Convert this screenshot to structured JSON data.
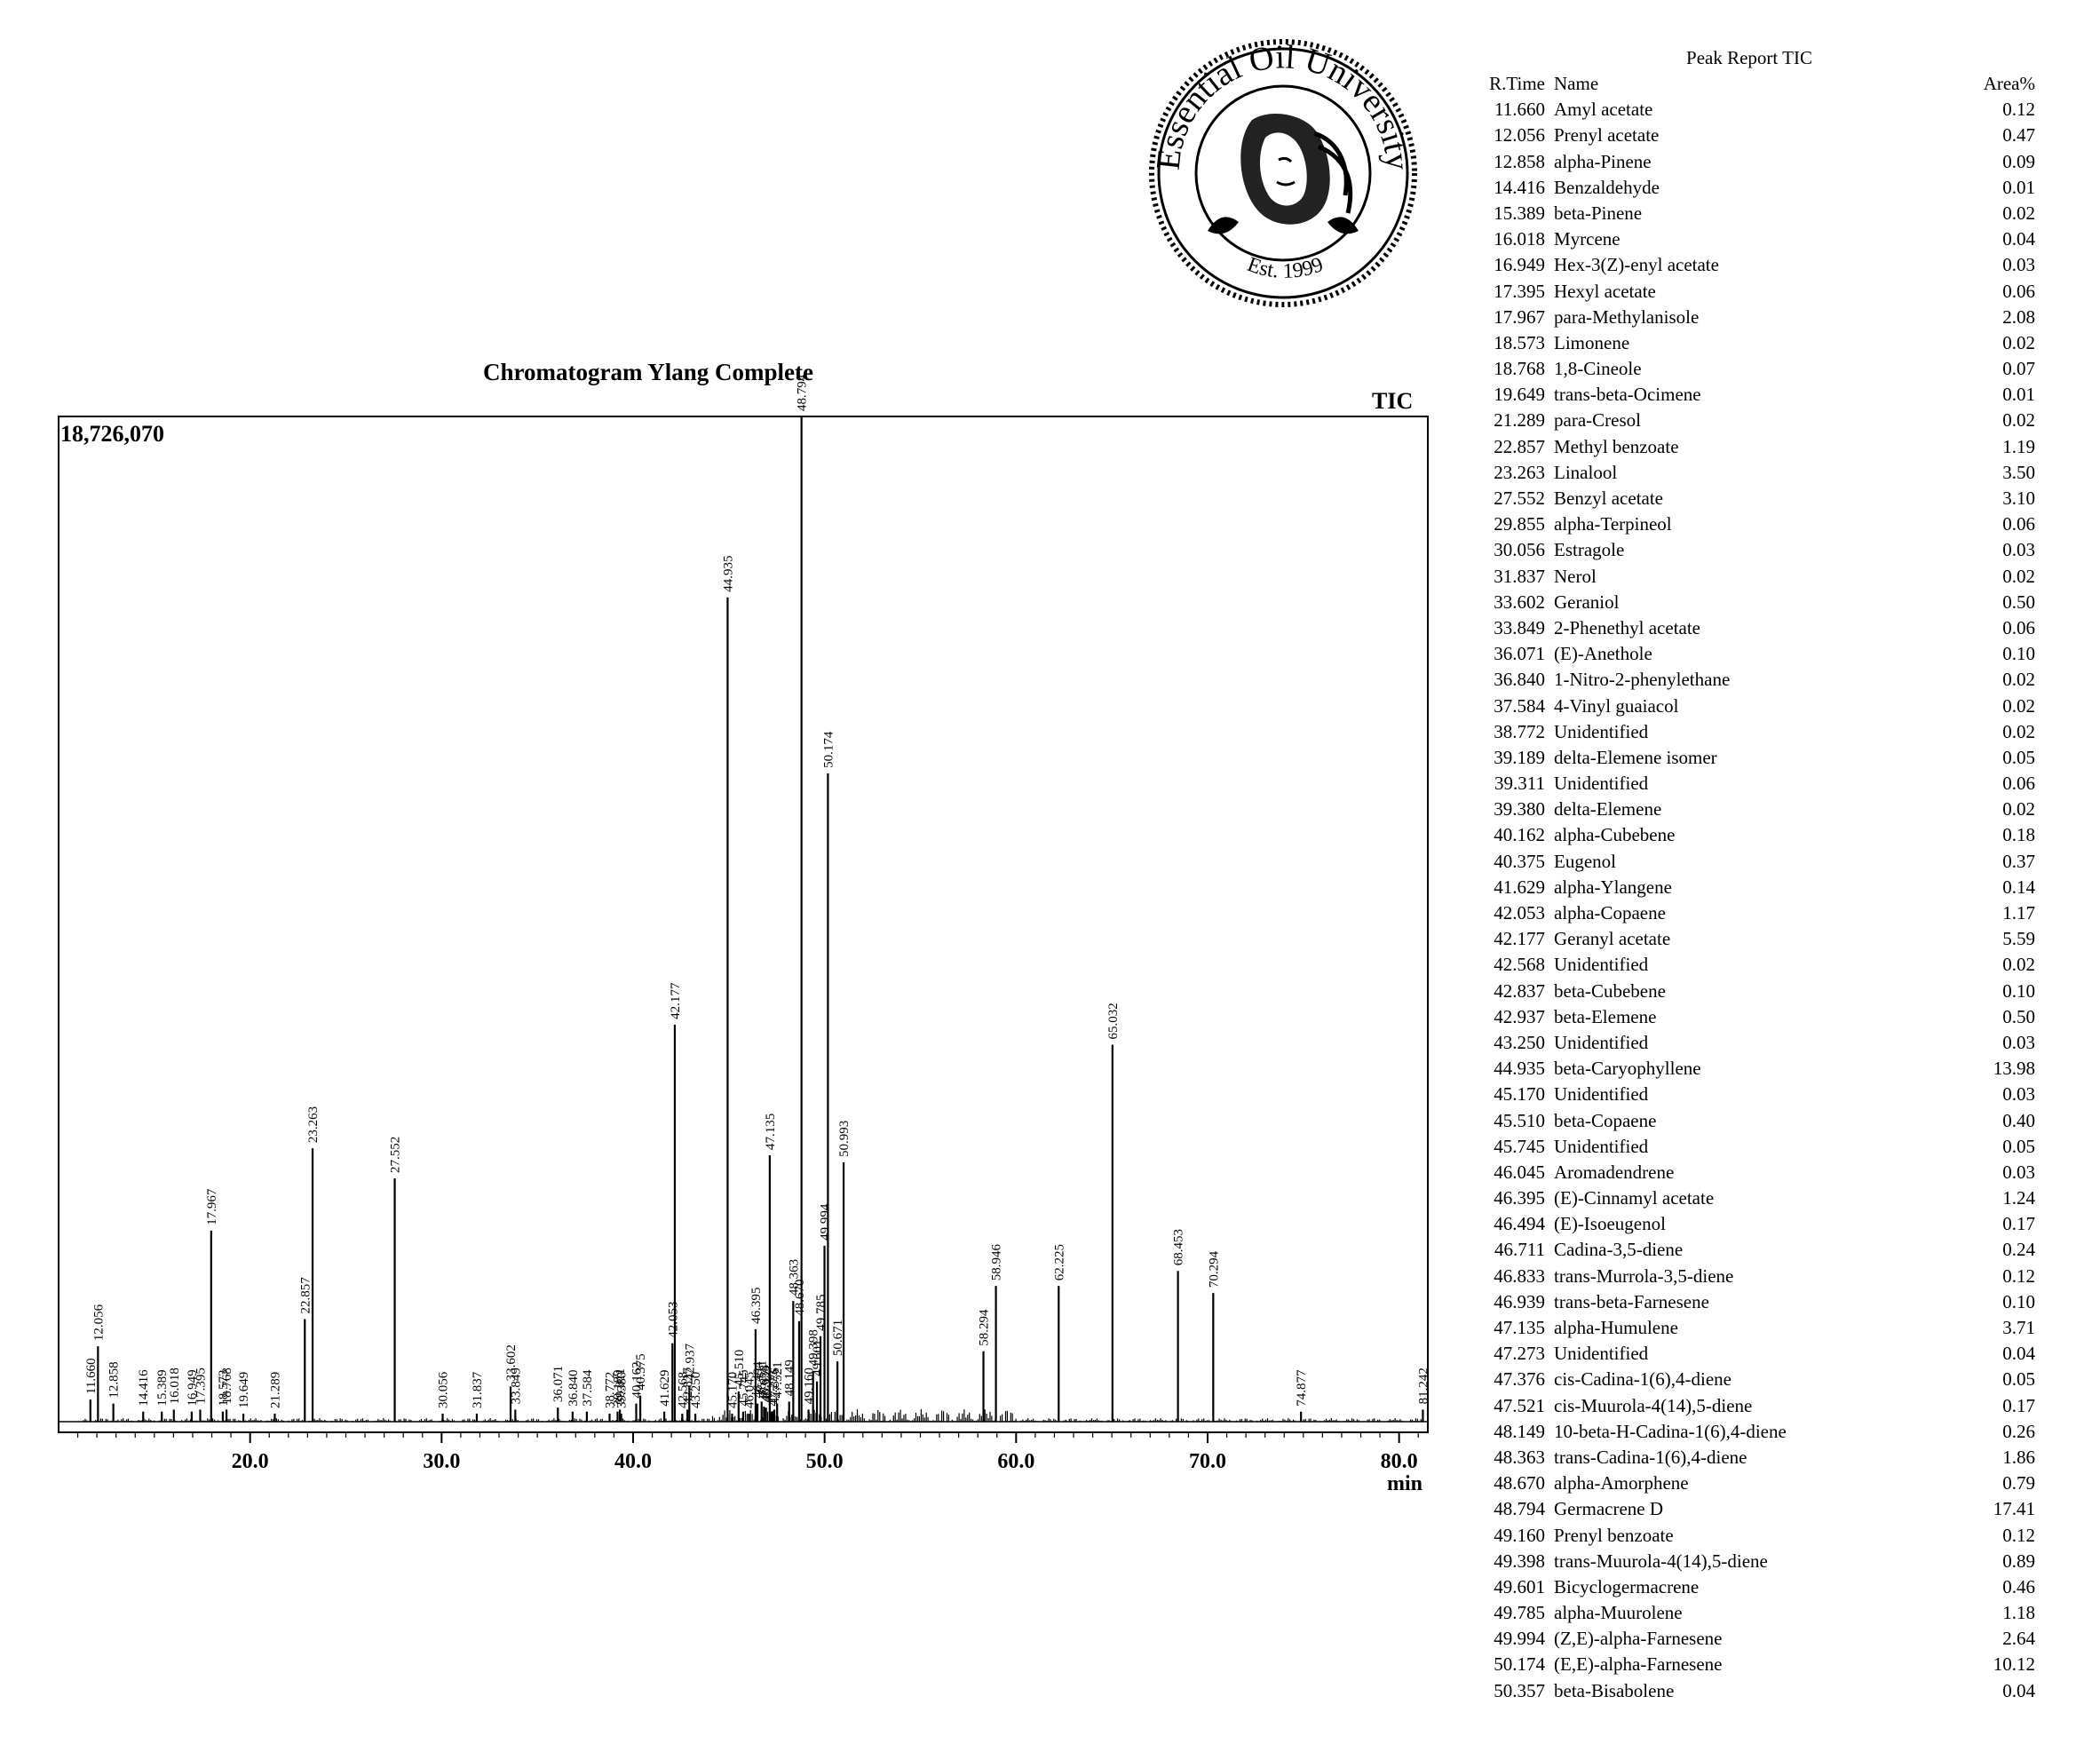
{
  "logo": {
    "text": "Essential Oil University",
    "est": "Est. 1999"
  },
  "chart_data": {
    "type": "line",
    "title": "Chromatogram Ylang Complete",
    "signal_label": "TIC",
    "max_intensity_label": "18,726,070",
    "xlabel": "min",
    "xlim": [
      10.0,
      81.5
    ],
    "ylim": [
      0,
      18726070
    ],
    "x_ticks": [
      "20.0",
      "30.0",
      "40.0",
      "50.0",
      "60.0",
      "70.0",
      "80.0"
    ],
    "peaks": [
      {
        "rt": "11.660",
        "h": 0.022
      },
      {
        "rt": "12.056",
        "h": 0.075
      },
      {
        "rt": "12.858",
        "h": 0.018
      },
      {
        "rt": "14.416",
        "h": 0.01
      },
      {
        "rt": "15.389",
        "h": 0.01
      },
      {
        "rt": "16.018",
        "h": 0.012
      },
      {
        "rt": "16.949",
        "h": 0.01
      },
      {
        "rt": "17.395",
        "h": 0.012
      },
      {
        "rt": "17.967",
        "h": 0.19
      },
      {
        "rt": "18.573",
        "h": 0.01
      },
      {
        "rt": "18.768",
        "h": 0.012
      },
      {
        "rt": "19.649",
        "h": 0.008
      },
      {
        "rt": "21.289",
        "h": 0.008
      },
      {
        "rt": "22.857",
        "h": 0.102
      },
      {
        "rt": "23.263",
        "h": 0.272
      },
      {
        "rt": "27.552",
        "h": 0.242
      },
      {
        "rt": "30.056",
        "h": 0.008
      },
      {
        "rt": "31.837",
        "h": 0.008
      },
      {
        "rt": "33.602",
        "h": 0.035
      },
      {
        "rt": "33.849",
        "h": 0.012
      },
      {
        "rt": "36.071",
        "h": 0.014
      },
      {
        "rt": "36.840",
        "h": 0.01
      },
      {
        "rt": "37.584",
        "h": 0.01
      },
      {
        "rt": "38.772",
        "h": 0.008
      },
      {
        "rt": "39.189",
        "h": 0.01
      },
      {
        "rt": "39.311",
        "h": 0.012
      },
      {
        "rt": "39.380",
        "h": 0.008
      },
      {
        "rt": "40.162",
        "h": 0.018
      },
      {
        "rt": "40.375",
        "h": 0.026
      },
      {
        "rt": "41.629",
        "h": 0.01
      },
      {
        "rt": "42.053",
        "h": 0.078
      },
      {
        "rt": "42.177",
        "h": 0.395
      },
      {
        "rt": "42.568",
        "h": 0.008
      },
      {
        "rt": "42.837",
        "h": 0.012
      },
      {
        "rt": "42.937",
        "h": 0.036
      },
      {
        "rt": "43.250",
        "h": 0.008
      },
      {
        "rt": "44.935",
        "h": 0.82
      },
      {
        "rt": "45.170",
        "h": 0.008
      },
      {
        "rt": "45.510",
        "h": 0.03
      },
      {
        "rt": "45.745",
        "h": 0.01
      },
      {
        "rt": "46.045",
        "h": 0.008
      },
      {
        "rt": "46.395",
        "h": 0.092
      },
      {
        "rt": "46.494",
        "h": 0.018
      },
      {
        "rt": "46.711",
        "h": 0.02
      },
      {
        "rt": "46.833",
        "h": 0.015
      },
      {
        "rt": "46.939",
        "h": 0.014
      },
      {
        "rt": "47.135",
        "h": 0.265
      },
      {
        "rt": "47.273",
        "h": 0.01
      },
      {
        "rt": "47.376",
        "h": 0.012
      },
      {
        "rt": "47.521",
        "h": 0.018
      },
      {
        "rt": "48.149",
        "h": 0.02
      },
      {
        "rt": "48.363",
        "h": 0.12
      },
      {
        "rt": "48.670",
        "h": 0.1
      },
      {
        "rt": "48.794",
        "h": 1.0
      },
      {
        "rt": "49.160",
        "h": 0.012
      },
      {
        "rt": "49.398",
        "h": 0.05
      },
      {
        "rt": "49.601",
        "h": 0.04
      },
      {
        "rt": "49.785",
        "h": 0.085
      },
      {
        "rt": "49.994",
        "h": 0.175
      },
      {
        "rt": "50.174",
        "h": 0.645
      },
      {
        "rt": "50.671",
        "h": 0.06
      },
      {
        "rt": "50.993",
        "h": 0.258
      },
      {
        "rt": "58.294",
        "h": 0.07
      },
      {
        "rt": "58.946",
        "h": 0.135
      },
      {
        "rt": "62.225",
        "h": 0.135
      },
      {
        "rt": "65.032",
        "h": 0.375
      },
      {
        "rt": "68.453",
        "h": 0.15
      },
      {
        "rt": "70.294",
        "h": 0.128
      },
      {
        "rt": "74.877",
        "h": 0.01
      },
      {
        "rt": "81.242",
        "h": 0.012
      }
    ]
  },
  "peak_report": {
    "title": "Peak Report TIC",
    "headers": {
      "rt": "R.Time",
      "name": "Name",
      "area": "Area%"
    },
    "rows": [
      [
        "11.660",
        "Amyl acetate",
        "0.12"
      ],
      [
        "12.056",
        "Prenyl acetate",
        "0.47"
      ],
      [
        "12.858",
        "alpha-Pinene",
        "0.09"
      ],
      [
        "14.416",
        "Benzaldehyde",
        "0.01"
      ],
      [
        "15.389",
        "beta-Pinene",
        "0.02"
      ],
      [
        "16.018",
        "Myrcene",
        "0.04"
      ],
      [
        "16.949",
        "Hex-3(Z)-enyl acetate",
        "0.03"
      ],
      [
        "17.395",
        "Hexyl acetate",
        "0.06"
      ],
      [
        "17.967",
        "para-Methylanisole",
        "2.08"
      ],
      [
        "18.573",
        "Limonene",
        "0.02"
      ],
      [
        "18.768",
        "1,8-Cineole",
        "0.07"
      ],
      [
        "19.649",
        "trans-beta-Ocimene",
        "0.01"
      ],
      [
        "21.289",
        "para-Cresol",
        "0.02"
      ],
      [
        "22.857",
        "Methyl benzoate",
        "1.19"
      ],
      [
        "23.263",
        "Linalool",
        "3.50"
      ],
      [
        "27.552",
        "Benzyl acetate",
        "3.10"
      ],
      [
        "29.855",
        "alpha-Terpineol",
        "0.06"
      ],
      [
        "30.056",
        "Estragole",
        "0.03"
      ],
      [
        "31.837",
        "Nerol",
        "0.02"
      ],
      [
        "33.602",
        "Geraniol",
        "0.50"
      ],
      [
        "33.849",
        "2-Phenethyl acetate",
        "0.06"
      ],
      [
        "36.071",
        "(E)-Anethole",
        "0.10"
      ],
      [
        "36.840",
        "1-Nitro-2-phenylethane",
        "0.02"
      ],
      [
        "37.584",
        "4-Vinyl guaiacol",
        "0.02"
      ],
      [
        "38.772",
        "Unidentified",
        "0.02"
      ],
      [
        "39.189",
        "delta-Elemene isomer",
        "0.05"
      ],
      [
        "39.311",
        "Unidentified",
        "0.06"
      ],
      [
        "39.380",
        "delta-Elemene",
        "0.02"
      ],
      [
        "40.162",
        "alpha-Cubebene",
        "0.18"
      ],
      [
        "40.375",
        "Eugenol",
        "0.37"
      ],
      [
        "41.629",
        "alpha-Ylangene",
        "0.14"
      ],
      [
        "42.053",
        "alpha-Copaene",
        "1.17"
      ],
      [
        "42.177",
        "Geranyl acetate",
        "5.59"
      ],
      [
        "42.568",
        "Unidentified",
        "0.02"
      ],
      [
        "42.837",
        "beta-Cubebene",
        "0.10"
      ],
      [
        "42.937",
        "beta-Elemene",
        "0.50"
      ],
      [
        "43.250",
        "Unidentified",
        "0.03"
      ],
      [
        "44.935",
        "beta-Caryophyllene",
        "13.98"
      ],
      [
        "45.170",
        "Unidentified",
        "0.03"
      ],
      [
        "45.510",
        "beta-Copaene",
        "0.40"
      ],
      [
        "45.745",
        "Unidentified",
        "0.05"
      ],
      [
        "46.045",
        "Aromadendrene",
        "0.03"
      ],
      [
        "46.395",
        "(E)-Cinnamyl acetate",
        "1.24"
      ],
      [
        "46.494",
        "(E)-Isoeugenol",
        "0.17"
      ],
      [
        "46.711",
        "Cadina-3,5-diene",
        "0.24"
      ],
      [
        "46.833",
        "trans-Murrola-3,5-diene",
        "0.12"
      ],
      [
        "46.939",
        "trans-beta-Farnesene",
        "0.10"
      ],
      [
        "47.135",
        "alpha-Humulene",
        "3.71"
      ],
      [
        "47.273",
        "Unidentified",
        "0.04"
      ],
      [
        "47.376",
        "cis-Cadina-1(6),4-diene",
        "0.05"
      ],
      [
        "47.521",
        "cis-Muurola-4(14),5-diene",
        "0.17"
      ],
      [
        "48.149",
        "10-beta-H-Cadina-1(6),4-diene",
        "0.26"
      ],
      [
        "48.363",
        "trans-Cadina-1(6),4-diene",
        "1.86"
      ],
      [
        "48.670",
        "alpha-Amorphene",
        "0.79"
      ],
      [
        "48.794",
        "Germacrene D",
        "17.41"
      ],
      [
        "49.160",
        "Prenyl benzoate",
        "0.12"
      ],
      [
        "49.398",
        "trans-Muurola-4(14),5-diene",
        "0.89"
      ],
      [
        "49.601",
        "Bicyclogermacrene",
        "0.46"
      ],
      [
        "49.785",
        "alpha-Muurolene",
        "1.18"
      ],
      [
        "49.994",
        "(Z,E)-alpha-Farnesene",
        "2.64"
      ],
      [
        "50.174",
        "(E,E)-alpha-Farnesene",
        "10.12"
      ],
      [
        "50.357",
        "beta-Bisabolene",
        "0.04"
      ]
    ]
  }
}
